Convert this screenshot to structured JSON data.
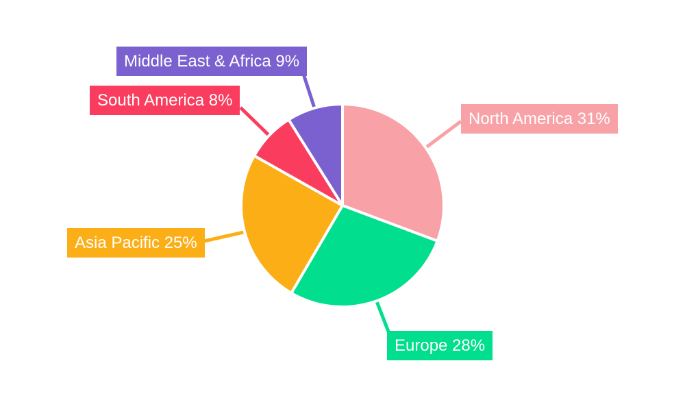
{
  "chart_data": {
    "type": "pie",
    "title": "",
    "legend": "none",
    "label_style": "external colored callout boxes with leader lines, white text",
    "start_angle_deg": 0,
    "direction": "clockwise",
    "background_color": "#ffffff",
    "slice_gap_color": "#ffffff",
    "slices": [
      {
        "label": "North America",
        "value": 31,
        "unit": "%",
        "color": "#F8A2A7",
        "callout": "North America 31%"
      },
      {
        "label": "Europe",
        "value": 28,
        "unit": "%",
        "color": "#01DE8D",
        "callout": "Europe 28%"
      },
      {
        "label": "Asia Pacific",
        "value": 25,
        "unit": "%",
        "color": "#FCAE16",
        "callout": "Asia Pacific 25%"
      },
      {
        "label": "South America",
        "value": 8,
        "unit": "%",
        "color": "#FA3D5E",
        "callout": "South America 8%"
      },
      {
        "label": "Middle East & Africa",
        "value": 9,
        "unit": "%",
        "color": "#7A61CF",
        "callout": "Middle East & Africa 9%"
      }
    ]
  }
}
